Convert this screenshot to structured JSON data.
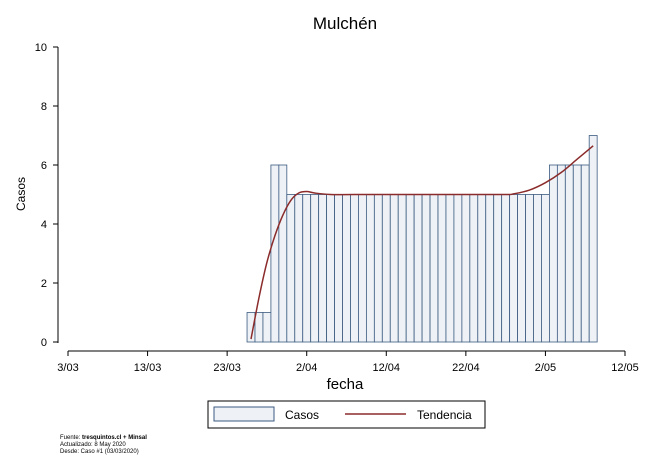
{
  "chart_data": {
    "type": "bar",
    "title": "Mulchén",
    "xlabel": "fecha",
    "ylabel": "Casos",
    "ylim": [
      0,
      10
    ],
    "yticks": [
      0,
      2,
      4,
      6,
      8,
      10
    ],
    "xticks": [
      "3/03",
      "13/03",
      "23/03",
      "2/04",
      "12/04",
      "22/04",
      "2/05",
      "12/05"
    ],
    "grid": false,
    "legend_position": "bottom",
    "x_start_date": "2020-03-03",
    "x_end_date": "2020-05-12",
    "bar_color": "#eef2f6",
    "bar_edge_color": "#3b5a80",
    "trend_color": "#8b2b2b",
    "series": [
      {
        "name": "Casos",
        "x": [
          "2020-03-26",
          "2020-03-27",
          "2020-03-28",
          "2020-03-29",
          "2020-03-30",
          "2020-03-31",
          "2020-04-01",
          "2020-04-02",
          "2020-04-03",
          "2020-04-04",
          "2020-04-05",
          "2020-04-06",
          "2020-04-07",
          "2020-04-08",
          "2020-04-09",
          "2020-04-10",
          "2020-04-11",
          "2020-04-12",
          "2020-04-13",
          "2020-04-14",
          "2020-04-15",
          "2020-04-16",
          "2020-04-17",
          "2020-04-18",
          "2020-04-19",
          "2020-04-20",
          "2020-04-21",
          "2020-04-22",
          "2020-04-23",
          "2020-04-24",
          "2020-04-25",
          "2020-04-26",
          "2020-04-27",
          "2020-04-28",
          "2020-04-29",
          "2020-04-30",
          "2020-05-01",
          "2020-05-02",
          "2020-05-03",
          "2020-05-04",
          "2020-05-05",
          "2020-05-06",
          "2020-05-07",
          "2020-05-08"
        ],
        "values": [
          1,
          1,
          1,
          6,
          6,
          5,
          5,
          5,
          5,
          5,
          5,
          5,
          5,
          5,
          5,
          5,
          5,
          5,
          5,
          5,
          5,
          5,
          5,
          5,
          5,
          5,
          5,
          5,
          5,
          5,
          5,
          5,
          5,
          5,
          5,
          5,
          5,
          5,
          6,
          6,
          6,
          6,
          6,
          7
        ]
      },
      {
        "name": "Tendencia",
        "x": [
          "2020-03-26",
          "2020-03-27",
          "2020-03-28",
          "2020-03-29",
          "2020-03-30",
          "2020-03-31",
          "2020-04-01",
          "2020-04-02",
          "2020-04-03",
          "2020-04-05",
          "2020-04-08",
          "2020-04-15",
          "2020-04-22",
          "2020-04-27",
          "2020-04-28",
          "2020-04-30",
          "2020-05-02",
          "2020-05-04",
          "2020-05-06",
          "2020-05-08"
        ],
        "values": [
          0.1,
          1.5,
          2.7,
          3.6,
          4.3,
          4.8,
          5.05,
          5.1,
          5.05,
          5.0,
          5.0,
          5.0,
          5.0,
          5.0,
          5.02,
          5.15,
          5.4,
          5.75,
          6.2,
          6.65
        ]
      }
    ],
    "source_label": "Fuente:",
    "source_name": "tresquintos.cl + Minsal",
    "updated": "Actualizado: 8 May 2020",
    "since": "Desde: Caso #1  (03/03/2020)"
  }
}
